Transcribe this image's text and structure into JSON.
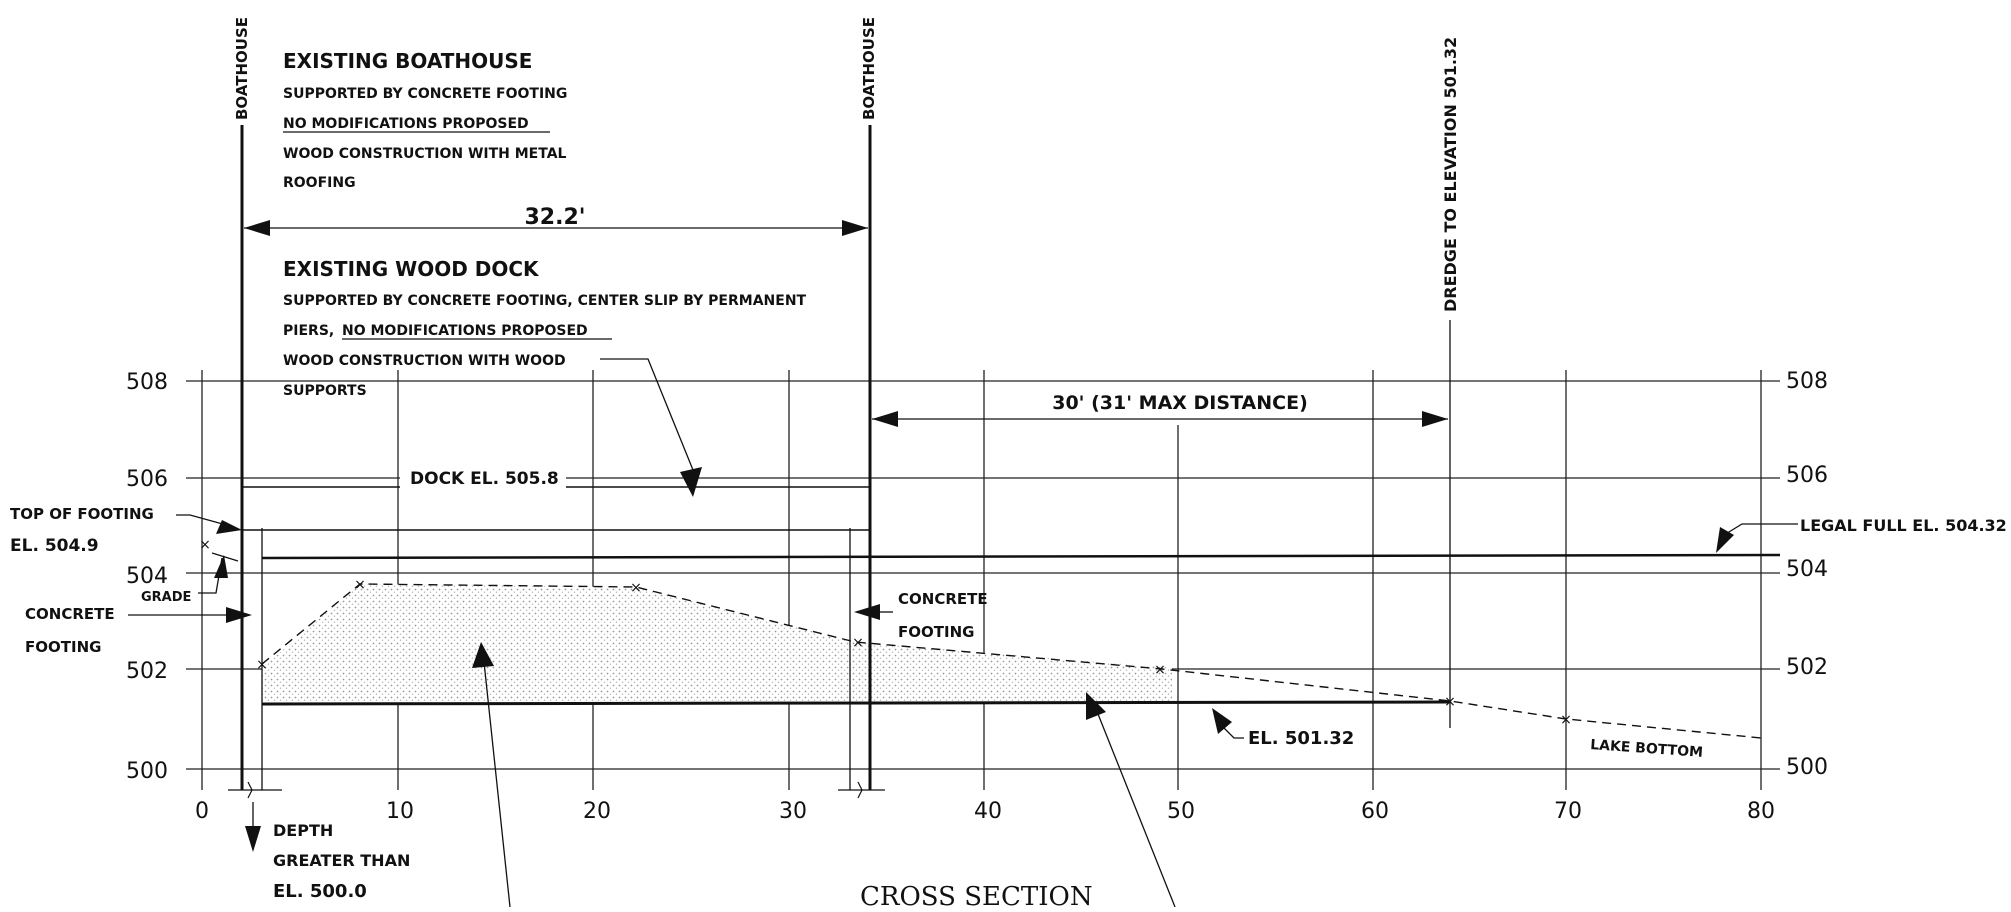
{
  "axes": {
    "x_ticks": [
      "0",
      "10",
      "20",
      "30",
      "40",
      "50",
      "60",
      "70",
      "80"
    ],
    "y_ticks_left": [
      "500",
      "502",
      "504",
      "506",
      "508"
    ],
    "y_ticks_right": [
      "500",
      "502",
      "504",
      "506",
      "508"
    ]
  },
  "labels": {
    "boathouse_left": "BOATHOUSE",
    "boathouse_right": "BOATHOUSE",
    "dredge": "DREDGE TO ELEVATION 501.32",
    "existing_boathouse": {
      "title": "EXISTING BOATHOUSE",
      "line1": "SUPPORTED BY CONCRETE FOOTING",
      "line2": "NO MODIFICATIONS PROPOSED",
      "line3": "WOOD CONSTRUCTION WITH METAL",
      "line4": "ROOFING"
    },
    "dim_32": "32.2'",
    "existing_dock": {
      "title": "EXISTING WOOD DOCK",
      "line1": "SUPPORTED BY CONCRETE FOOTING, CENTER SLIP BY PERMANENT",
      "line2a": "PIERS, ",
      "line2b": "NO MODIFICATIONS PROPOSED",
      "line3": "WOOD CONSTRUCTION WITH WOOD",
      "line4": "SUPPORTS"
    },
    "dim_30": "30' (31' MAX DISTANCE)",
    "dock_el": "DOCK EL. 505.8",
    "top_of_footing": "TOP OF FOOTING",
    "el_504_9": "EL. 504.9",
    "grade": "GRADE",
    "concrete_footing_left_1": "CONCRETE",
    "concrete_footing_left_2": "FOOTING",
    "concrete_footing_right_1": "CONCRETE",
    "concrete_footing_right_2": "FOOTING",
    "legal_full": "LEGAL FULL EL. 504.32",
    "el_501_32": "EL. 501.32",
    "lake_bottom": "LAKE BOTTOM",
    "depth_1": "DEPTH",
    "depth_2": "GREATER THAN",
    "depth_3": "EL. 500.0",
    "cross_section": "CROSS SECTION"
  },
  "colors": {
    "ink": "#111111",
    "grid": "#222222",
    "fill": "#d9d9d9"
  }
}
